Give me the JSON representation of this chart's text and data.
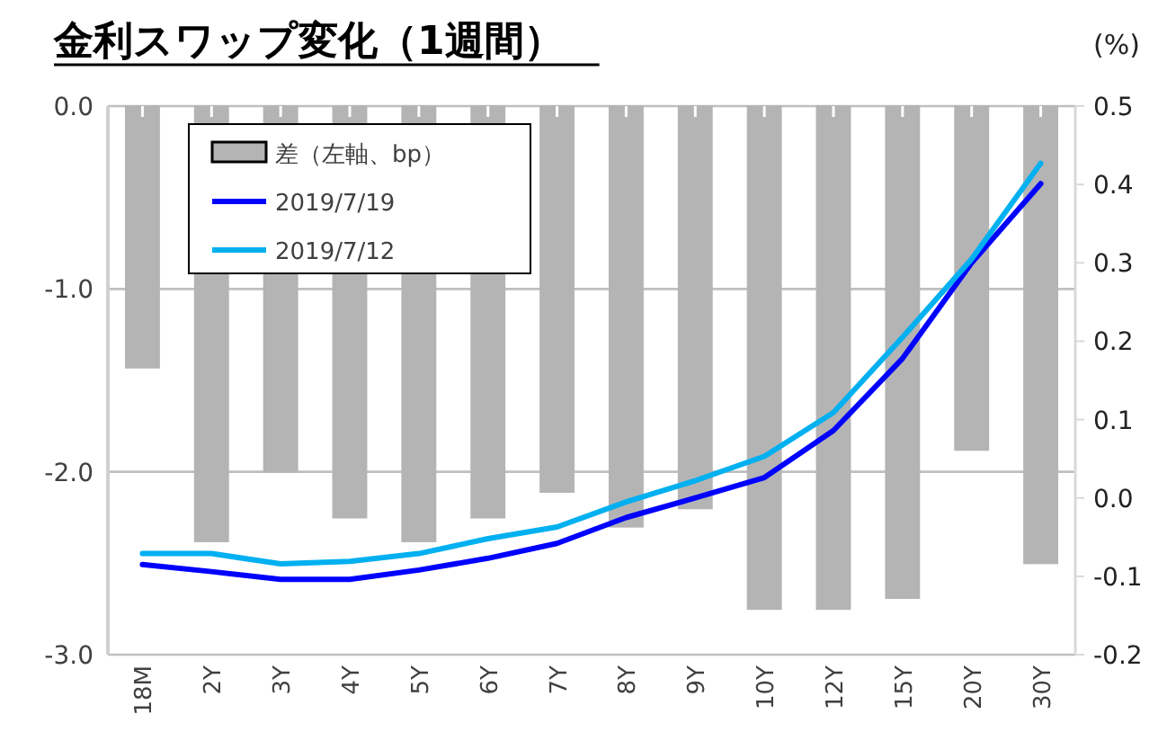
{
  "chart_data": {
    "type": "bar",
    "title": "金利スワップ変化（1週間）",
    "y2label": "(%)",
    "categories": [
      "18M",
      "2Y",
      "3Y",
      "4Y",
      "5Y",
      "6Y",
      "7Y",
      "8Y",
      "9Y",
      "10Y",
      "12Y",
      "15Y",
      "20Y",
      "30Y"
    ],
    "series": [
      {
        "name": "差（左軸、bp）",
        "color": "#b4b4b4",
        "values": [
          -1.43,
          -2.38,
          -2.0,
          -2.25,
          -2.38,
          -2.25,
          -2.11,
          -2.3,
          -2.2,
          -2.75,
          -2.75,
          -2.69,
          -1.88,
          -2.5
        ]
      },
      {
        "name": "2019/7/19",
        "type": "line",
        "axis": "y2",
        "color": "#0000ff",
        "values": [
          -0.085,
          -0.094,
          -0.104,
          -0.104,
          -0.092,
          -0.077,
          -0.058,
          -0.025,
          0.0,
          0.026,
          0.086,
          0.178,
          0.3,
          0.401
        ]
      },
      {
        "name": "2019/7/12",
        "type": "line",
        "axis": "y2",
        "color": "#00b0f0",
        "values": [
          -0.071,
          -0.071,
          -0.084,
          -0.081,
          -0.071,
          -0.052,
          -0.037,
          -0.005,
          0.022,
          0.053,
          0.109,
          0.205,
          0.305,
          0.427
        ]
      }
    ],
    "ylim": [
      -3,
      0
    ],
    "yticks": [
      {
        "value": -3,
        "label": "-3.0"
      },
      {
        "value": -2,
        "label": "-2.0"
      },
      {
        "value": -1,
        "label": "-1.0"
      },
      {
        "value": 0,
        "label": "0.0"
      }
    ],
    "y2lim": [
      -0.2,
      0.5
    ],
    "y2ticks": [
      -0.2,
      -0.1,
      {
        "value": 0,
        "label": "0.0"
      },
      0.1,
      0.2,
      0.3,
      0.4,
      0.5
    ],
    "grid": "y",
    "legend": "top left"
  }
}
